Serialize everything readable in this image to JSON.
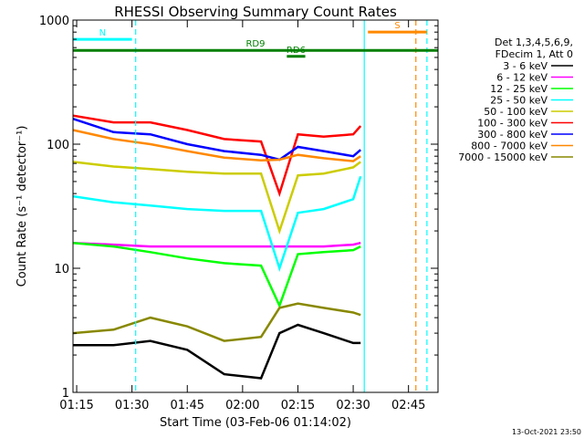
{
  "chart_data": {
    "type": "line",
    "title": "RHESSI Observing Summary Count Rates",
    "xlabel": "Start Time (03-Feb-06 01:14:02)",
    "ylabel": "Count Rate (s⁻¹ detector⁻¹)",
    "y_scale": "log",
    "ylim": [
      1,
      1000
    ],
    "xlim": [
      "01:14",
      "02:53"
    ],
    "x_ticks": [
      "01:15",
      "01:30",
      "01:45",
      "02:00",
      "02:15",
      "02:30",
      "02:45"
    ],
    "y_ticks": [
      "1",
      "10",
      "100",
      "1000"
    ],
    "legend_header": [
      "Det 1,3,4,5,6,9,",
      "FDecim 1, Att 0"
    ],
    "legend_position": "right",
    "series": [
      {
        "name": "3 - 6 keV",
        "color": "#000000",
        "x": [
          "01:14",
          "01:25",
          "01:35",
          "01:45",
          "01:55",
          "02:05",
          "02:10",
          "02:15",
          "02:22",
          "02:30",
          "02:32"
        ],
        "y": [
          2.4,
          2.4,
          2.6,
          2.2,
          1.4,
          1.3,
          3.0,
          3.5,
          3.0,
          2.5,
          2.5
        ]
      },
      {
        "name": "6 - 12 keV",
        "color": "#ff00ff",
        "x": [
          "01:14",
          "01:25",
          "01:35",
          "01:45",
          "01:55",
          "02:05",
          "02:10",
          "02:15",
          "02:22",
          "02:30",
          "02:32"
        ],
        "y": [
          16,
          15.5,
          15,
          15,
          15,
          15,
          15,
          15,
          15,
          15.5,
          16
        ]
      },
      {
        "name": "12 - 25 keV",
        "color": "#00ff00",
        "x": [
          "01:14",
          "01:25",
          "01:35",
          "01:45",
          "01:55",
          "02:05",
          "02:10",
          "02:15",
          "02:22",
          "02:30",
          "02:32"
        ],
        "y": [
          16,
          15,
          13.5,
          12,
          11,
          10.5,
          5,
          13,
          13.5,
          14,
          15
        ]
      },
      {
        "name": "25 - 50 keV",
        "color": "#00ffff",
        "x": [
          "01:14",
          "01:25",
          "01:35",
          "01:45",
          "01:55",
          "02:05",
          "02:10",
          "02:15",
          "02:22",
          "02:30",
          "02:32"
        ],
        "y": [
          38,
          34,
          32,
          30,
          29,
          29,
          10,
          28,
          30,
          36,
          55
        ]
      },
      {
        "name": "50 - 100 keV",
        "color": "#cccc00",
        "x": [
          "01:14",
          "01:25",
          "01:35",
          "01:45",
          "01:55",
          "02:05",
          "02:10",
          "02:15",
          "02:22",
          "02:30",
          "02:32"
        ],
        "y": [
          72,
          66,
          63,
          60,
          58,
          58,
          20,
          56,
          58,
          65,
          72
        ]
      },
      {
        "name": "100 - 300 keV",
        "color": "#ff0000",
        "x": [
          "01:14",
          "01:25",
          "01:35",
          "01:45",
          "01:55",
          "02:05",
          "02:10",
          "02:15",
          "02:22",
          "02:30",
          "02:32"
        ],
        "y": [
          170,
          150,
          150,
          130,
          110,
          105,
          40,
          120,
          115,
          120,
          140
        ]
      },
      {
        "name": "300 - 800 keV",
        "color": "#0000ff",
        "x": [
          "01:14",
          "01:25",
          "01:35",
          "01:45",
          "01:55",
          "02:05",
          "02:10",
          "02:15",
          "02:22",
          "02:30",
          "02:32"
        ],
        "y": [
          160,
          125,
          120,
          100,
          88,
          82,
          75,
          95,
          88,
          80,
          90
        ]
      },
      {
        "name": "800 - 7000 keV",
        "color": "#ff8800",
        "x": [
          "01:14",
          "01:25",
          "01:35",
          "01:45",
          "01:55",
          "02:05",
          "02:10",
          "02:15",
          "02:22",
          "02:30",
          "02:32"
        ],
        "y": [
          130,
          110,
          100,
          88,
          78,
          74,
          75,
          82,
          77,
          73,
          80
        ]
      },
      {
        "name": "7000 - 15000 keV",
        "color": "#888800",
        "x": [
          "01:14",
          "01:25",
          "01:35",
          "01:45",
          "01:55",
          "02:05",
          "02:10",
          "02:15",
          "02:22",
          "02:30",
          "02:32"
        ],
        "y": [
          3.0,
          3.2,
          4.0,
          3.4,
          2.6,
          2.8,
          4.8,
          5.2,
          4.8,
          4.4,
          4.2
        ]
      }
    ],
    "annotations": [
      {
        "label": "N",
        "color": "#00ffff",
        "x_start": "01:14",
        "x_end": "01:30",
        "y": 700
      },
      {
        "label": "S",
        "color": "#ff8800",
        "x_start": "02:34",
        "x_end": "02:50",
        "y": 800
      },
      {
        "label": "RD6",
        "color": "#008000",
        "x_start": "02:12",
        "x_end": "02:17",
        "y": 510
      },
      {
        "label": "RD9",
        "color": "#008000",
        "x_start": "01:14",
        "x_end": "02:53",
        "y": 570
      }
    ],
    "vertical_lines": [
      {
        "x": "01:31",
        "color": "#00ffff",
        "style": "dashed"
      },
      {
        "x": "02:33",
        "color": "#00ffff",
        "style": "solid"
      },
      {
        "x": "02:47",
        "color": "#ff8800",
        "style": "dashed"
      },
      {
        "x": "02:50",
        "color": "#00ffff",
        "style": "dashed"
      }
    ],
    "footer_timestamp": "13-Oct-2021 23:50"
  }
}
